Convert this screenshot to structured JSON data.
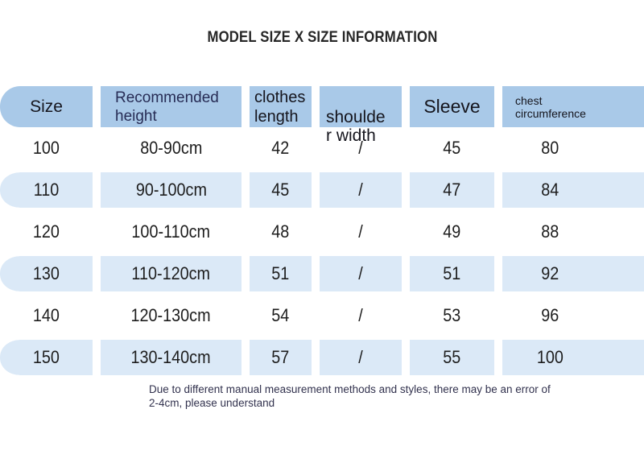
{
  "title": "MODEL SIZE X SIZE INFORMATION",
  "colors": {
    "header_bg": "#a9c9e8",
    "band_bg": "#dbe9f7",
    "header_text_navy": "#272c55",
    "header_text_dark": "#15151d",
    "data_text": "#1d1d1d",
    "footer_text": "#32324e",
    "title_text": "#262626"
  },
  "chart_data": {
    "type": "table",
    "title": "MODEL SIZE X SIZE INFORMATION",
    "columns": [
      {
        "key": "size",
        "label": "Size"
      },
      {
        "key": "height",
        "label": "Recommended\nheight"
      },
      {
        "key": "length",
        "label": "clothes\nlength"
      },
      {
        "key": "shoulder",
        "label": "shoulde\nr width"
      },
      {
        "key": "sleeve",
        "label": "Sleeve"
      },
      {
        "key": "chest",
        "label": "chest\ncircumference"
      }
    ],
    "rows": [
      {
        "size": "100",
        "height": "80-90cm",
        "length": "42",
        "shoulder": "/",
        "sleeve": "45",
        "chest": "80"
      },
      {
        "size": "110",
        "height": "90-100cm",
        "length": "45",
        "shoulder": "/",
        "sleeve": "47",
        "chest": "84"
      },
      {
        "size": "120",
        "height": "100-110cm",
        "length": "48",
        "shoulder": "/",
        "sleeve": "49",
        "chest": "88"
      },
      {
        "size": "130",
        "height": "110-120cm",
        "length": "51",
        "shoulder": "/",
        "sleeve": "51",
        "chest": "92"
      },
      {
        "size": "140",
        "height": "120-130cm",
        "length": "54",
        "shoulder": "/",
        "sleeve": "53",
        "chest": "96"
      },
      {
        "size": "150",
        "height": "130-140cm",
        "length": "57",
        "shoulder": "/",
        "sleeve": "55",
        "chest": "100"
      }
    ],
    "banded_rows": [
      1,
      3,
      5
    ],
    "note": "Due to different manual measurement methods and styles, there may be an error of\n2-4cm, please understand"
  }
}
